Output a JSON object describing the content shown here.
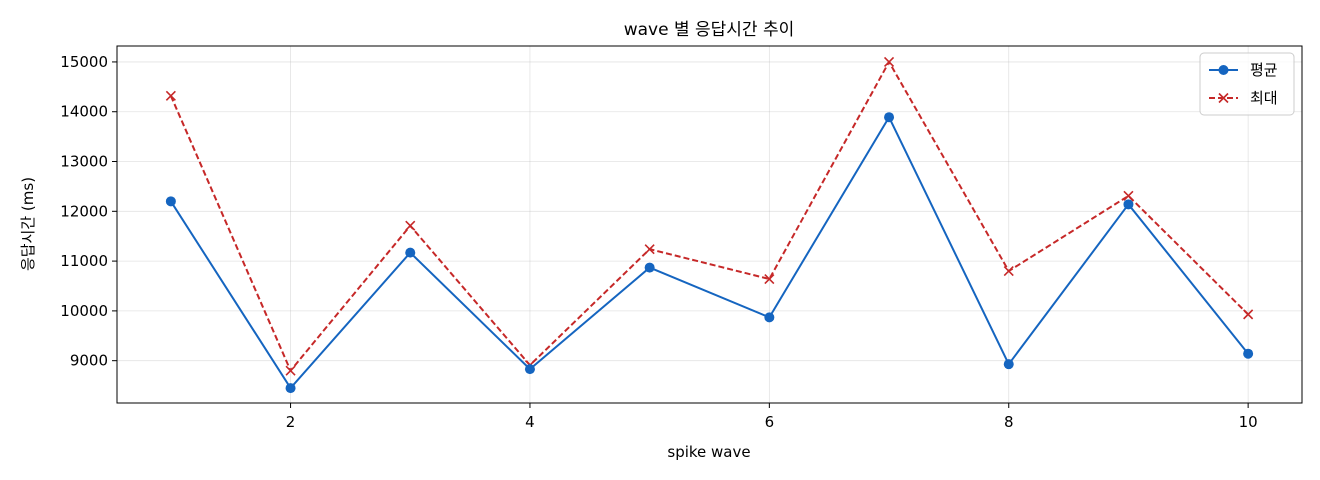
{
  "chart_data": {
    "type": "line",
    "title": "wave 별 응답시간 추이",
    "xlabel": "spike wave",
    "ylabel": "응답시간 (ms)",
    "x": [
      1,
      2,
      3,
      4,
      5,
      6,
      7,
      8,
      9,
      10
    ],
    "xlim": [
      0.55,
      10.45
    ],
    "ylim": [
      8150,
      15320
    ],
    "x_ticks": [
      2,
      4,
      6,
      8,
      10
    ],
    "y_ticks": [
      9000,
      10000,
      11000,
      12000,
      13000,
      14000,
      15000
    ],
    "grid": true,
    "legend_position": "top-right",
    "series": [
      {
        "name": "평균",
        "values": [
          12200,
          8450,
          11170,
          8830,
          10870,
          9870,
          13890,
          8930,
          12140,
          9140
        ],
        "color": "#1565c0",
        "line_style": "solid",
        "marker": "circle"
      },
      {
        "name": "최대",
        "values": [
          14320,
          8800,
          11710,
          8910,
          11240,
          10640,
          15000,
          10800,
          12310,
          9930
        ],
        "color": "#c62828",
        "line_style": "dashed",
        "marker": "x"
      }
    ]
  }
}
